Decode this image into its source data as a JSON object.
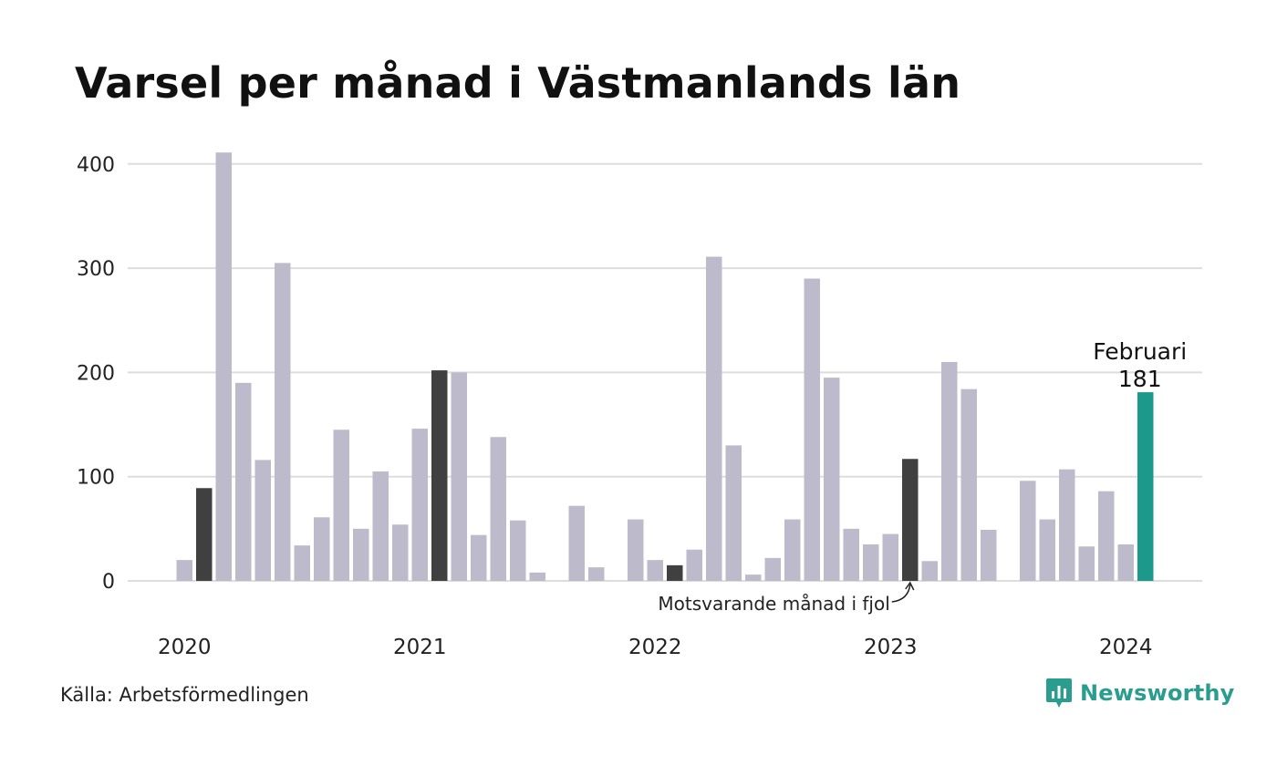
{
  "chart_data": {
    "type": "bar",
    "title": "Varsel per månad i Västmanlands län",
    "source": "Källa: Arbetsförmedlingen",
    "brand": "Newsworthy",
    "ylim": [
      0,
      420
    ],
    "yticks": [
      0,
      100,
      200,
      300,
      400
    ],
    "year_labels": [
      "2020",
      "2021",
      "2022",
      "2023",
      "2024"
    ],
    "grid": true,
    "x": [
      "2020-01",
      "2020-02",
      "2020-03",
      "2020-04",
      "2020-05",
      "2020-06",
      "2020-07",
      "2020-08",
      "2020-09",
      "2020-10",
      "2020-11",
      "2020-12",
      "2021-01",
      "2021-02",
      "2021-03",
      "2021-04",
      "2021-05",
      "2021-06",
      "2021-07",
      "2021-08",
      "2021-09",
      "2021-10",
      "2021-11",
      "2021-12",
      "2022-01",
      "2022-02",
      "2022-03",
      "2022-04",
      "2022-05",
      "2022-06",
      "2022-07",
      "2022-08",
      "2022-09",
      "2022-10",
      "2022-11",
      "2022-12",
      "2023-01",
      "2023-02",
      "2023-03",
      "2023-04",
      "2023-05",
      "2023-06",
      "2023-07",
      "2023-08",
      "2023-09",
      "2023-10",
      "2023-11",
      "2023-12",
      "2024-01",
      "2024-02"
    ],
    "values": [
      20,
      89,
      411,
      190,
      116,
      305,
      34,
      61,
      145,
      50,
      105,
      54,
      146,
      202,
      200,
      44,
      138,
      58,
      8,
      0,
      72,
      13,
      0,
      59,
      20,
      15,
      30,
      311,
      130,
      6,
      22,
      59,
      290,
      195,
      50,
      35,
      45,
      117,
      19,
      210,
      184,
      49,
      0,
      96,
      59,
      107,
      33,
      86,
      35,
      181
    ],
    "highlight_color": "#1b998b",
    "compare_color": "#404040",
    "bar_color": "#bcbacb",
    "highlight": {
      "label": "Februari",
      "value_text": "181"
    },
    "annotation": "Motsvarande månad i fjol"
  }
}
